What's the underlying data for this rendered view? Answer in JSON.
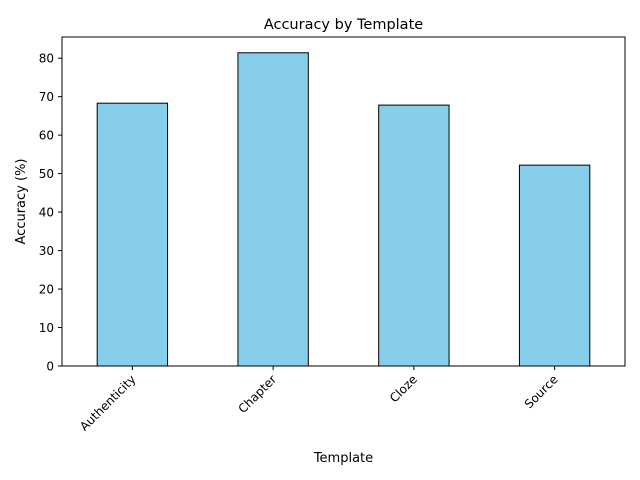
{
  "chart_data": {
    "type": "bar",
    "title": "Accuracy by Template",
    "xlabel": "Template",
    "ylabel": "Accuracy (%)",
    "categories": [
      "Authenticity",
      "Chapter",
      "Cloze",
      "Source"
    ],
    "values": [
      68.3,
      81.4,
      67.8,
      52.2
    ],
    "ylim": [
      0,
      85.5
    ],
    "yticks": [
      0,
      10,
      20,
      30,
      40,
      50,
      60,
      70,
      80
    ],
    "bar_color": "#87CEEB",
    "bar_edge_color": "#000000",
    "grid": false,
    "legend": "none"
  }
}
